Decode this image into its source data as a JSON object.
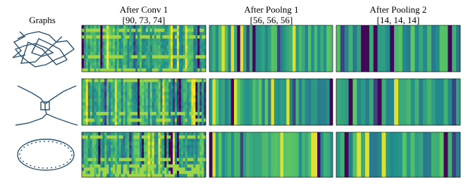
{
  "header": {
    "graphs": "Graphs"
  },
  "panels": [
    {
      "title": "After Conv 1",
      "shape": "[90, 73, 74]"
    },
    {
      "title": "After Poolng 1",
      "shape": "[56, 56, 56]"
    },
    {
      "title": "After Pooling 2",
      "shape": "[14, 14, 14]"
    }
  ]
}
